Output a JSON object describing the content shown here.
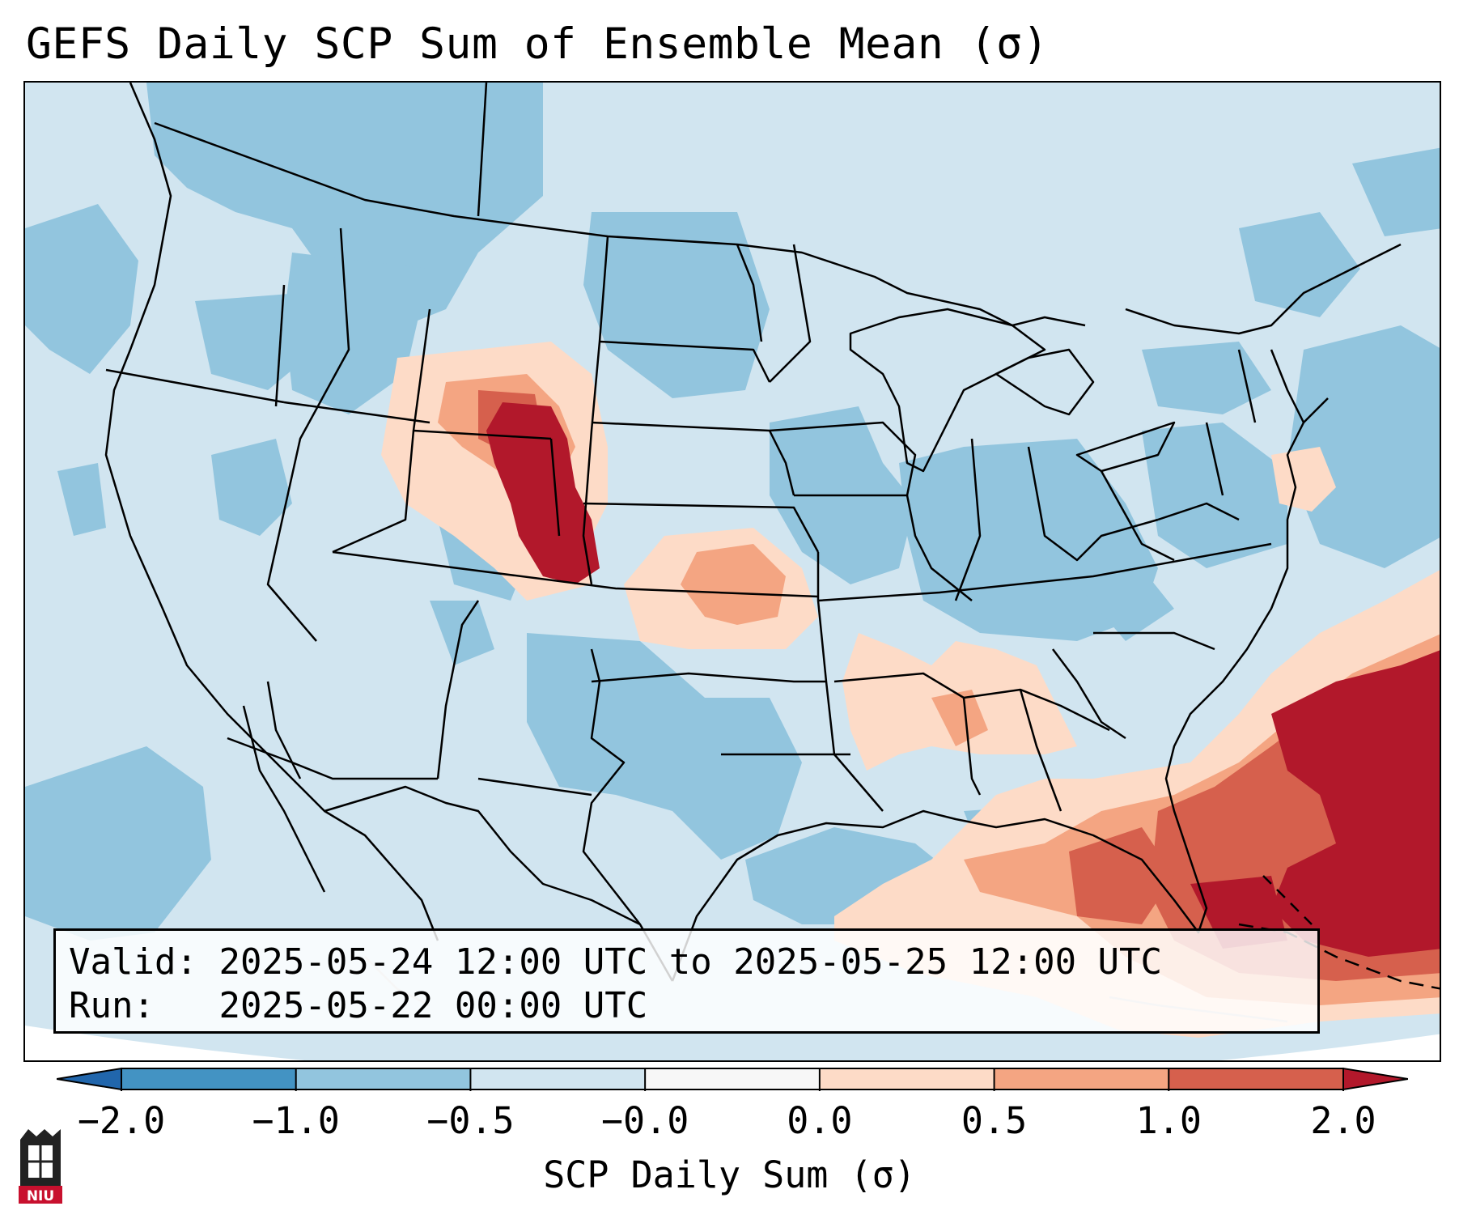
{
  "title": "GEFS Daily SCP Sum of Ensemble Mean (σ)",
  "info": {
    "valid_label": "Valid:",
    "valid_value": "2025-05-24 12:00 UTC to 2025-05-25 12:00 UTC",
    "run_label": "Run:",
    "run_value": "2025-05-22 00:00 UTC"
  },
  "colorbar": {
    "label": "SCP Daily Sum (σ)",
    "extend": "both",
    "bins": [
      {
        "from": -2.0,
        "to": -1.0,
        "color": "#4393c3"
      },
      {
        "from": -1.0,
        "to": -0.5,
        "color": "#92c5de"
      },
      {
        "from": -0.5,
        "to": -0.0,
        "color": "#d1e5f0"
      },
      {
        "from": -0.0,
        "to": 0.0,
        "color": "#f7f7f7"
      },
      {
        "from": 0.0,
        "to": 0.5,
        "color": "#fddbc7"
      },
      {
        "from": 0.5,
        "to": 1.0,
        "color": "#f4a582"
      },
      {
        "from": 1.0,
        "to": 2.0,
        "color": "#d6604d"
      }
    ],
    "under_color": "#2166ac",
    "over_color": "#b2182b",
    "tick_labels": [
      "−2.0",
      "−1.0",
      "−0.5",
      "−0.0",
      "0.0",
      "0.5",
      "1.0",
      "2.0"
    ]
  },
  "map": {
    "projection": "Lambert Conformal (CONUS)",
    "variable": "SCP daily sum standardized anomaly",
    "background_color": "#d1e5f0"
  },
  "logo": {
    "text": "NIU",
    "color": "#c8102e"
  }
}
